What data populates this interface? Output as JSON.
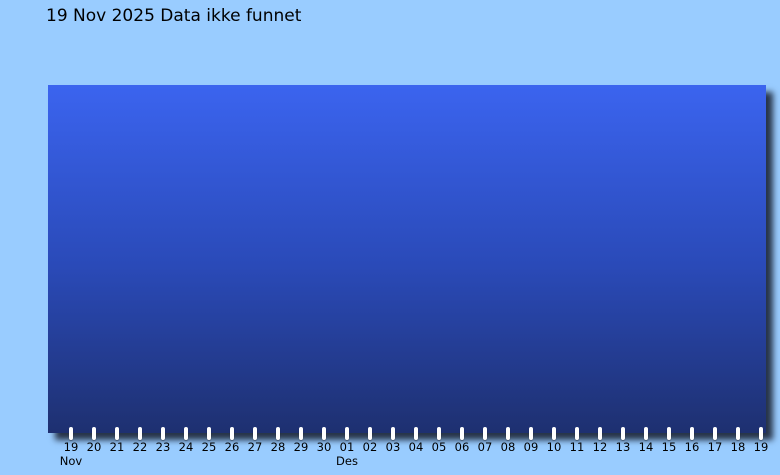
{
  "page": {
    "background_color": "#99ccff",
    "shadow_color": "rgba(0, 0, 12, 0.75)"
  },
  "chart_data": {
    "type": "line",
    "title": "19 Nov 2025 Data ikke funnet",
    "status_message": "Data ikke funnet",
    "series": [],
    "legend": false,
    "grid": false,
    "x_axis": {
      "tick_labels": [
        "19",
        "20",
        "21",
        "22",
        "23",
        "24",
        "25",
        "26",
        "27",
        "28",
        "29",
        "30",
        "01",
        "02",
        "03",
        "04",
        "05",
        "06",
        "07",
        "08",
        "09",
        "10",
        "11",
        "12",
        "13",
        "14",
        "15",
        "16",
        "17",
        "18",
        "19"
      ],
      "month_labels": [
        {
          "label": "Nov",
          "tick_index": 0
        },
        {
          "label": "Des",
          "tick_index": 12
        }
      ]
    },
    "plot_colors": {
      "gradient_top": "#3b64ef",
      "gradient_mid": "#2a4ab8",
      "gradient_bottom": "#1e3070",
      "tick_marker": "#ffffff"
    }
  }
}
